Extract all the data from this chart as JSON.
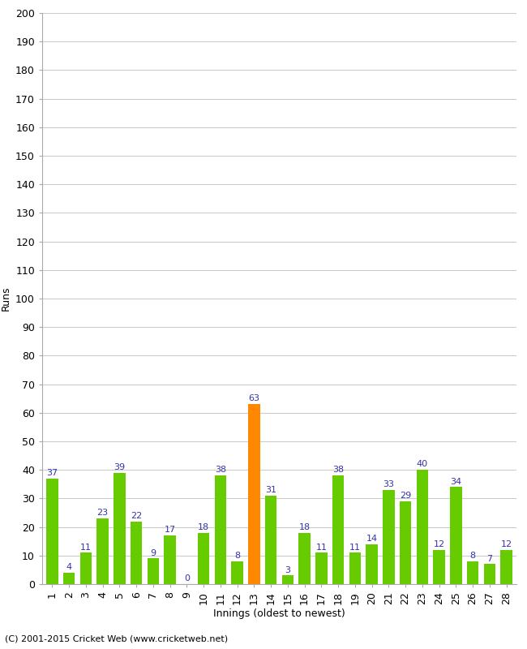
{
  "xlabel": "Innings (oldest to newest)",
  "ylabel": "Runs",
  "values": [
    37,
    4,
    11,
    23,
    39,
    22,
    9,
    17,
    0,
    18,
    38,
    8,
    63,
    31,
    3,
    18,
    11,
    38,
    11,
    14,
    33,
    29,
    40,
    12,
    34,
    8,
    7,
    12
  ],
  "innings": [
    1,
    2,
    3,
    4,
    5,
    6,
    7,
    8,
    9,
    10,
    11,
    12,
    13,
    14,
    15,
    16,
    17,
    18,
    19,
    20,
    21,
    22,
    23,
    24,
    25,
    26,
    27,
    28
  ],
  "highlight_index": 12,
  "bar_color_normal": "#66CC00",
  "bar_color_highlight": "#FF8800",
  "ylim": [
    0,
    200
  ],
  "ytick_step": 10,
  "label_color": "#3333AA",
  "footer": "(C) 2001-2015 Cricket Web (www.cricketweb.net)",
  "background_color": "#FFFFFF",
  "grid_color": "#CCCCCC",
  "axis_fontsize": 9,
  "label_fontsize": 8
}
